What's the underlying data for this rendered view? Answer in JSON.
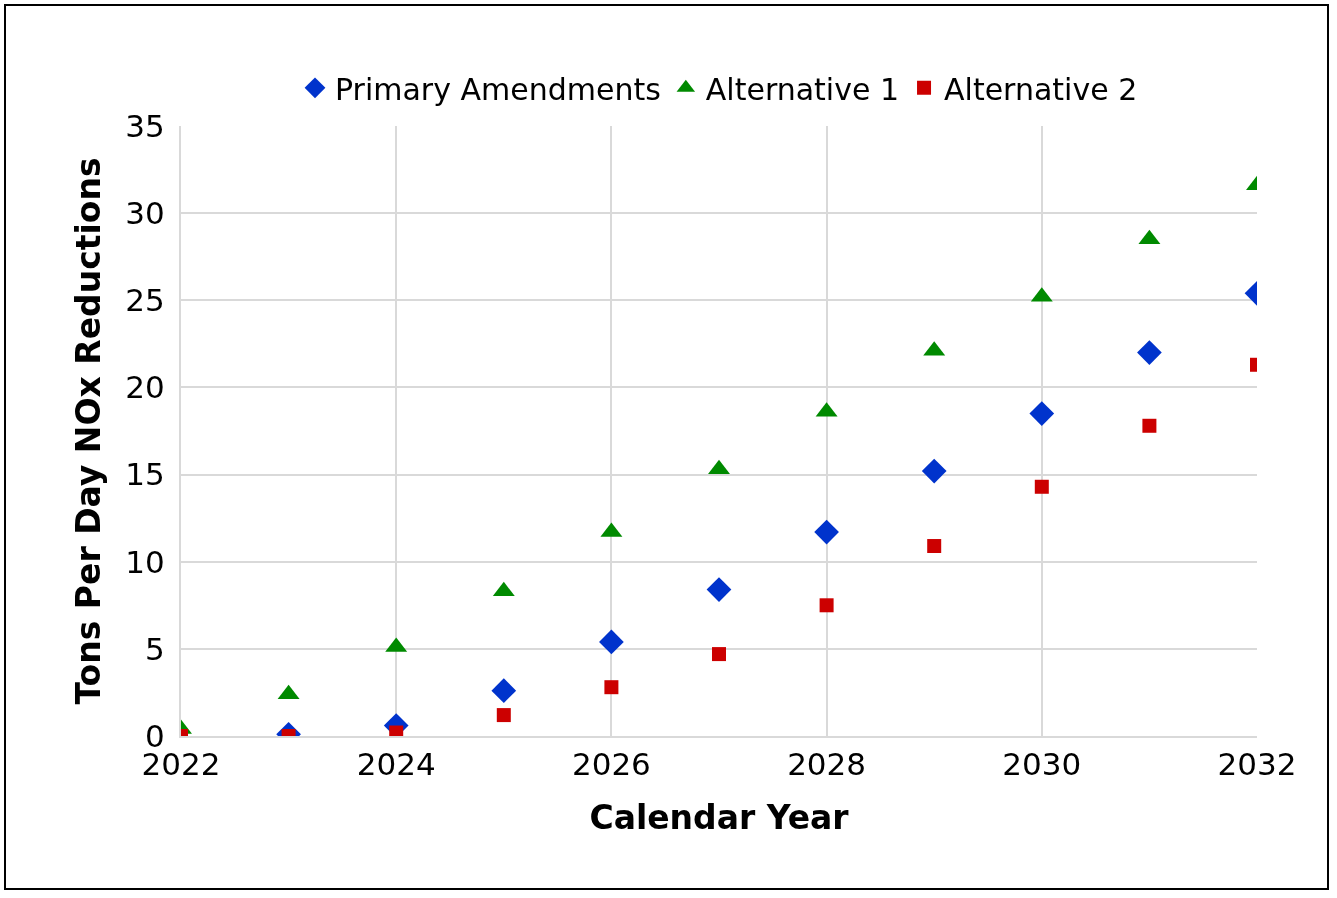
{
  "chart_data": {
    "type": "scatter",
    "xlabel": "Calendar Year",
    "ylabel": "Tons Per Day NOx Reductions",
    "x": [
      2022,
      2023,
      2024,
      2025,
      2026,
      2027,
      2028,
      2029,
      2030,
      2031,
      2032
    ],
    "series": [
      {
        "name": "Primary Amendments",
        "color": "#0033cc",
        "marker": "diamond",
        "values": [
          null,
          0.1,
          0.6,
          2.6,
          5.4,
          8.4,
          11.7,
          15.2,
          18.5,
          22.0,
          25.4
        ]
      },
      {
        "name": "Alternative 1",
        "color": "#008a00",
        "marker": "triangle",
        "values": [
          0.4,
          2.4,
          5.1,
          8.3,
          11.7,
          15.3,
          18.6,
          22.1,
          25.2,
          28.5,
          31.6
        ]
      },
      {
        "name": "Alternative 2",
        "color": "#cc0000",
        "marker": "square",
        "values": [
          0,
          0,
          0.2,
          1.2,
          2.8,
          4.7,
          7.5,
          10.9,
          14.3,
          17.8,
          21.3
        ]
      }
    ],
    "xlim": [
      2022,
      2032
    ],
    "xticks": [
      2022,
      2024,
      2026,
      2028,
      2030,
      2032
    ],
    "ylim": [
      0,
      35
    ],
    "yticks": [
      0,
      5,
      10,
      15,
      20,
      25,
      30,
      35
    ],
    "grid": true,
    "legend": "top"
  }
}
